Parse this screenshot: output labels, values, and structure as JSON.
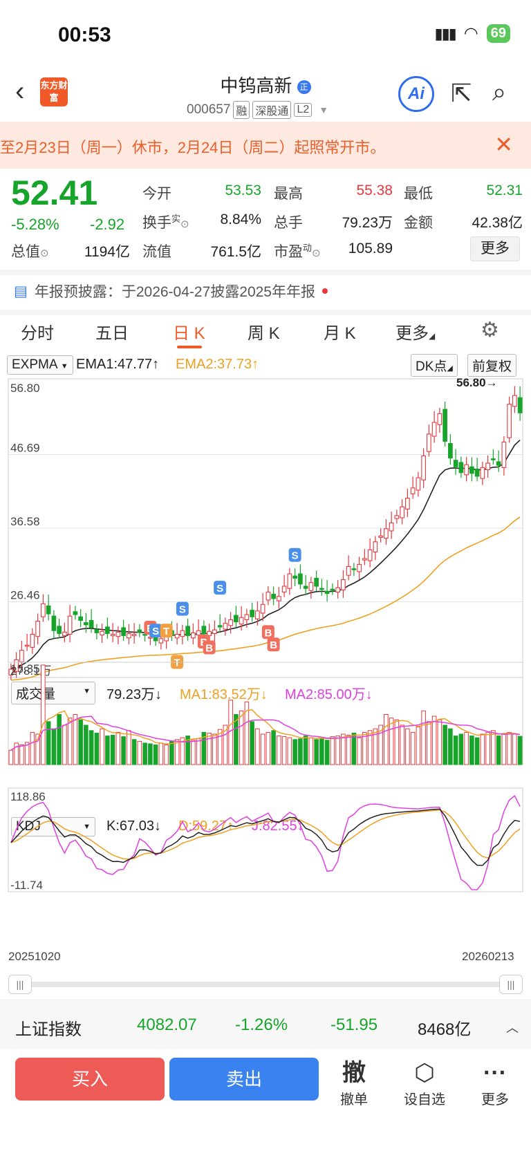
{
  "status_bar": {
    "time": "00:53",
    "battery": "69"
  },
  "header": {
    "logo_text": "东方财富",
    "stock_name": "中钨高新",
    "stock_code": "000657",
    "tags": [
      "融",
      "深股通",
      "L2"
    ],
    "ai_label": "Ai"
  },
  "notice": {
    "text": "至2月23日（周一）休市，2月24日（周二）起照常开市。"
  },
  "quote": {
    "price": "52.41",
    "change_pct": "-5.28%",
    "change": "-2.92",
    "open_label": "今开",
    "open": "53.53",
    "high_label": "最高",
    "high": "55.38",
    "low_label": "最低",
    "low": "52.31",
    "turnover_label": "换手",
    "turnover_sup": "实",
    "turnover": "8.84%",
    "volume_label": "总手",
    "volume": "79.23万",
    "amount_label": "金额",
    "amount": "42.38亿",
    "mktcap_label": "总值",
    "mktcap": "1194亿",
    "float_label": "流值",
    "float": "761.5亿",
    "pe_label": "市盈",
    "pe_sup": "动",
    "pe": "105.89",
    "more_label": "更多"
  },
  "report": {
    "text": "年报预披露：于2026-04-27披露2025年年报"
  },
  "tabs": [
    "分时",
    "五日",
    "日 K",
    "周 K",
    "月 K",
    "更多"
  ],
  "active_tab": 2,
  "main_indicator": {
    "name": "EXPMA",
    "ema1": "EMA1:47.77",
    "ema2": "EMA2:37.73",
    "dk_label": "DK点",
    "adjust_label": "前复权",
    "ema1_color": "#222222",
    "ema2_color": "#f0a020"
  },
  "volume_indicator": {
    "name": "成交量",
    "vol": "79.23万",
    "ma1": "MA1:83.52万",
    "ma2": "MA2:85.00万",
    "ma1_color": "#f0a020",
    "ma2_color": "#e040e0"
  },
  "kdj_indicator": {
    "name": "KDJ",
    "k": "K:67.03",
    "d": "D:59.27",
    "j": "J:82.55"
  },
  "chart_data": {
    "type": "candlestick",
    "price_axis_ticks": [
      "56.80",
      "46.69",
      "36.58",
      "26.46",
      "16.35"
    ],
    "price_range": [
      16.35,
      56.8
    ],
    "max_label": "56.80",
    "min_label": "16.35",
    "volume_axis_ticks": [
      "278.1万"
    ],
    "kdj_axis_ticks": [
      "118.86",
      "-11.74"
    ],
    "date_start": "20251020",
    "date_end": "20260213",
    "signal_labels": [
      "B",
      "S",
      "T",
      "B",
      "S",
      "S",
      "B",
      "B",
      "S",
      "B",
      "T"
    ],
    "closes": [
      17.2,
      18.5,
      19.8,
      20.5,
      22.0,
      23.8,
      26.2,
      24.8,
      22.5,
      22.1,
      22.3,
      24.5,
      24.7,
      23.9,
      23.3,
      22.9,
      22.2,
      22.4,
      22.1,
      22.0,
      22.3,
      21.8,
      22.1,
      22.0,
      22.3,
      21.9,
      21.6,
      21.1,
      21.4,
      21.9,
      21.8,
      22.0,
      22.5,
      21.8,
      22.2,
      22.5,
      22.1,
      22.4,
      22.6,
      23.0,
      23.5,
      24.0,
      23.7,
      24.3,
      24.7,
      24.4,
      25.2,
      26.1,
      27.8,
      26.9,
      27.2,
      28.6,
      30.3,
      29.7,
      28.9,
      28.3,
      29.1,
      28.6,
      28.2,
      27.6,
      28.1,
      28.4,
      29.5,
      31.3,
      30.9,
      31.6,
      32.4,
      33.6,
      34.7,
      35.5,
      36.5,
      37.3,
      38.3,
      39.5,
      40.7,
      42.1,
      43.5,
      46.5,
      49.5,
      51.1,
      52.3,
      48.5,
      46.2,
      45.0,
      44.2,
      45.3,
      44.1,
      43.7,
      44.9,
      45.5,
      46.0,
      45.2,
      48.4,
      53.6,
      54.8,
      52.41
    ],
    "volumes": [
      40,
      60,
      55,
      62,
      90,
      85,
      278,
      120,
      100,
      140,
      110,
      130,
      140,
      125,
      110,
      95,
      88,
      100,
      80,
      82,
      90,
      78,
      95,
      70,
      65,
      60,
      58,
      55,
      60,
      55,
      65,
      70,
      75,
      80,
      68,
      72,
      90,
      88,
      85,
      98,
      110,
      180,
      140,
      150,
      175,
      120,
      100,
      85,
      90,
      95,
      80,
      78,
      75,
      70,
      72,
      80,
      75,
      70,
      72,
      68,
      78,
      80,
      85,
      82,
      88,
      75,
      90,
      95,
      100,
      110,
      140,
      130,
      125,
      110,
      100,
      90,
      105,
      150,
      120,
      135,
      125,
      110,
      100,
      80,
      85,
      90,
      80,
      75,
      85,
      90,
      95,
      80,
      85,
      90,
      85,
      79
    ]
  }
}
